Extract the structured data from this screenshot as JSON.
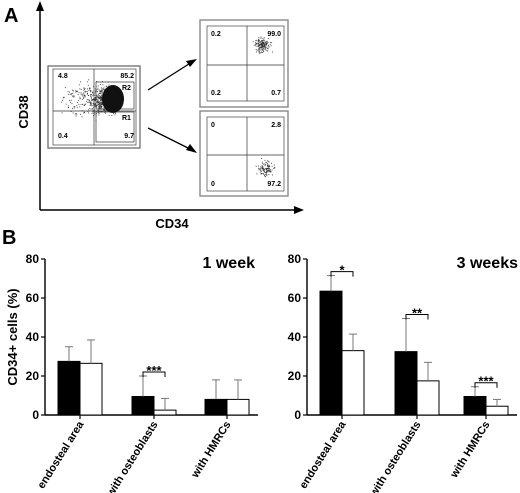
{
  "panel_a": {
    "letter": "A",
    "x_axis_label": "CD34",
    "y_axis_label": "CD38",
    "main_plot": {
      "q_tl": "4.8",
      "q_tr": "85.2",
      "q_bl": "0.4",
      "q_br": "9.7",
      "gate_r2": "R2",
      "gate_r1": "R1"
    },
    "upper_plot": {
      "q_tl": "0.2",
      "q_tr": "99.0",
      "q_bl": "0.2",
      "q_br": "0.7"
    },
    "lower_plot": {
      "q_tl": "0",
      "q_tr": "2.8",
      "q_bl": "0",
      "q_br": "97.2"
    }
  },
  "panel_b": {
    "letter": "B",
    "y_axis_label": "CD34+ cells (%)"
  },
  "chart_data": [
    {
      "type": "bar",
      "title": "1 week",
      "ylabel": "CD34+ cells (%)",
      "ylim": [
        0,
        80
      ],
      "yticks": [
        "0",
        "20",
        "40",
        "60",
        "80"
      ],
      "categories": [
        "endosteal area",
        "with osteoblasts",
        "with HMRCs"
      ],
      "series": [
        {
          "values": [
            27.5,
            9.5,
            8
          ],
          "error": [
            7.5,
            10.5,
            10
          ],
          "color": "#000000"
        },
        {
          "values": [
            26.5,
            2.5,
            8
          ],
          "error": [
            12,
            6,
            10
          ],
          "color": "#ffffff"
        }
      ],
      "significance": [
        {
          "category": "with osteoblasts",
          "label": "***"
        }
      ]
    },
    {
      "type": "bar",
      "title": "3 weeks",
      "ylabel": "",
      "ylim": [
        0,
        80
      ],
      "yticks": [
        "0",
        "20",
        "40",
        "60",
        "80"
      ],
      "categories": [
        "endosteal area",
        "with osteoblasts",
        "with HMRCs"
      ],
      "series": [
        {
          "values": [
            63.5,
            32.5,
            9.5
          ],
          "error": [
            8,
            17,
            5
          ],
          "color": "#000000"
        },
        {
          "values": [
            33,
            17.5,
            4.5
          ],
          "error": [
            8.5,
            9.5,
            3.5
          ],
          "color": "#ffffff"
        }
      ],
      "significance": [
        {
          "category": "endosteal area",
          "label": "*"
        },
        {
          "category": "with osteoblasts",
          "label": "**"
        },
        {
          "category": "with HMRCs",
          "label": "***"
        }
      ]
    }
  ]
}
